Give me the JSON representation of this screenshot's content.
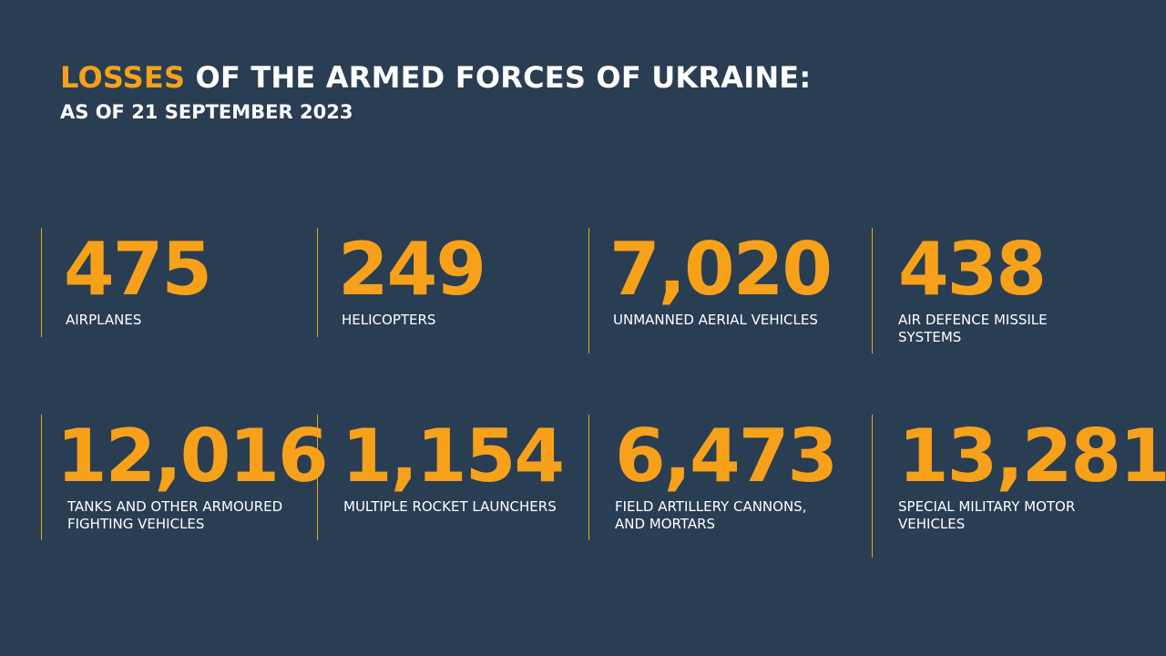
{
  "header": {
    "title_accent": "LOSSES",
    "title_rest": " OF THE ARMED FORCES OF UKRAINE:",
    "subtitle": "AS OF 21 SEPTEMBER 2023"
  },
  "colors": {
    "background": "#293d53",
    "accent": "#f7a11a",
    "text": "#ffffff"
  },
  "stats": [
    {
      "value": "475",
      "label_line1": "AIRPLANES",
      "label_line2": ""
    },
    {
      "value": "249",
      "label_line1": "HELICOPTERS",
      "label_line2": ""
    },
    {
      "value": "7,020",
      "label_line1": "UNMANNED AERIAL VEHICLES",
      "label_line2": ""
    },
    {
      "value": "438",
      "label_line1": "AIR DEFENCE MISSILE",
      "label_line2": "SYSTEMS"
    },
    {
      "value": "12,016",
      "label_line1": "TANKS AND OTHER ARMOURED",
      "label_line2": "FIGHTING VEHICLES"
    },
    {
      "value": "1,154",
      "label_line1": "MULTIPLE ROCKET LAUNCHERS",
      "label_line2": ""
    },
    {
      "value": "6,473",
      "label_line1": "FIELD ARTILLERY CANNONS,",
      "label_line2": "AND MORTARS"
    },
    {
      "value": "13,281",
      "label_line1": "SPECIAL MILITARY MOTOR",
      "label_line2": "VEHICLES"
    }
  ]
}
